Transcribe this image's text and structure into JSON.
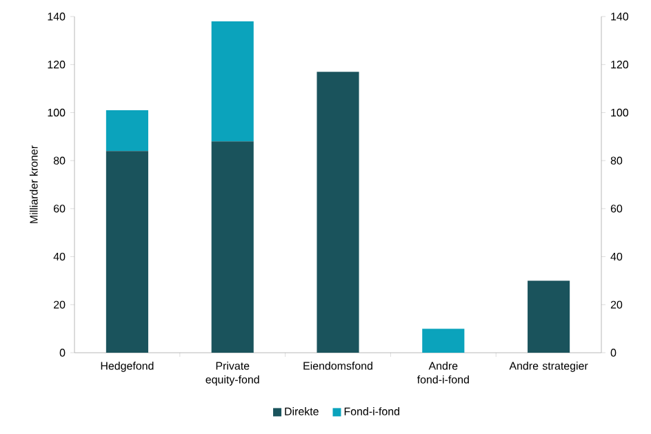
{
  "chart_data": {
    "type": "bar",
    "stacked": true,
    "ylabel": "Milliarder kroner",
    "categories": [
      "Hedgefond",
      "Private equity-fond",
      "Eiendomsfond",
      "Andre fond-i-fond",
      "Andre strategier"
    ],
    "series": [
      {
        "name": "Direkte",
        "color": "#1a535c",
        "values": [
          84,
          88,
          117,
          0,
          30
        ]
      },
      {
        "name": "Fond-i-fond",
        "color": "#0ba3bc",
        "values": [
          17,
          50,
          0,
          10,
          0
        ]
      }
    ],
    "ylim": [
      0,
      140
    ],
    "yticks": [
      0,
      20,
      40,
      60,
      80,
      100,
      120,
      140
    ],
    "y2lim": [
      0,
      140
    ],
    "y2ticks": [
      0,
      20,
      40,
      60,
      80,
      100,
      120,
      140
    ],
    "grid": false,
    "legend": "bottom"
  }
}
